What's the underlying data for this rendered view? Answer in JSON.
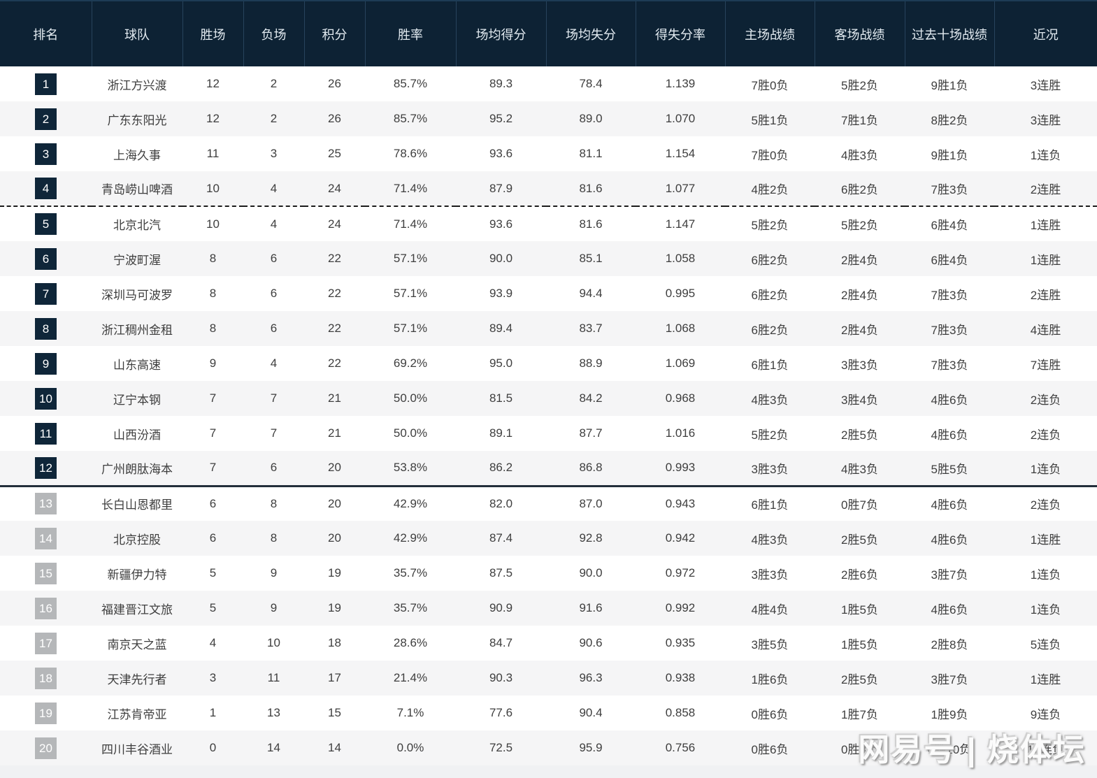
{
  "table": {
    "columns": [
      {
        "key": "rank",
        "label": "排名"
      },
      {
        "key": "team",
        "label": "球队"
      },
      {
        "key": "wins",
        "label": "胜场"
      },
      {
        "key": "losses",
        "label": "负场"
      },
      {
        "key": "points",
        "label": "积分"
      },
      {
        "key": "win_rate",
        "label": "胜率"
      },
      {
        "key": "avg_for",
        "label": "场均得分"
      },
      {
        "key": "avg_against",
        "label": "场均失分"
      },
      {
        "key": "ratio",
        "label": "得失分率"
      },
      {
        "key": "home",
        "label": "主场战绩"
      },
      {
        "key": "away",
        "label": "客场战绩"
      },
      {
        "key": "last10",
        "label": "过去十场战绩"
      },
      {
        "key": "recent",
        "label": "近况"
      }
    ],
    "rows": [
      {
        "rank": "1",
        "team": "浙江方兴渡",
        "wins": "12",
        "losses": "2",
        "points": "26",
        "win_rate": "85.7%",
        "avg_for": "89.3",
        "avg_against": "78.4",
        "ratio": "1.139",
        "home": "7胜0负",
        "away": "5胜2负",
        "last10": "9胜1负",
        "recent": "3连胜"
      },
      {
        "rank": "2",
        "team": "广东东阳光",
        "wins": "12",
        "losses": "2",
        "points": "26",
        "win_rate": "85.7%",
        "avg_for": "95.2",
        "avg_against": "89.0",
        "ratio": "1.070",
        "home": "5胜1负",
        "away": "7胜1负",
        "last10": "8胜2负",
        "recent": "3连胜"
      },
      {
        "rank": "3",
        "team": "上海久事",
        "wins": "11",
        "losses": "3",
        "points": "25",
        "win_rate": "78.6%",
        "avg_for": "93.6",
        "avg_against": "81.1",
        "ratio": "1.154",
        "home": "7胜0负",
        "away": "4胜3负",
        "last10": "9胜1负",
        "recent": "1连负"
      },
      {
        "rank": "4",
        "team": "青岛崂山啤酒",
        "wins": "10",
        "losses": "4",
        "points": "24",
        "win_rate": "71.4%",
        "avg_for": "87.9",
        "avg_against": "81.6",
        "ratio": "1.077",
        "home": "4胜2负",
        "away": "6胜2负",
        "last10": "7胜3负",
        "recent": "2连胜"
      },
      {
        "rank": "5",
        "team": "北京北汽",
        "wins": "10",
        "losses": "4",
        "points": "24",
        "win_rate": "71.4%",
        "avg_for": "93.6",
        "avg_against": "81.6",
        "ratio": "1.147",
        "home": "5胜2负",
        "away": "5胜2负",
        "last10": "6胜4负",
        "recent": "1连胜"
      },
      {
        "rank": "6",
        "team": "宁波町渥",
        "wins": "8",
        "losses": "6",
        "points": "22",
        "win_rate": "57.1%",
        "avg_for": "90.0",
        "avg_against": "85.1",
        "ratio": "1.058",
        "home": "6胜2负",
        "away": "2胜4负",
        "last10": "6胜4负",
        "recent": "1连胜"
      },
      {
        "rank": "7",
        "team": "深圳马可波罗",
        "wins": "8",
        "losses": "6",
        "points": "22",
        "win_rate": "57.1%",
        "avg_for": "93.9",
        "avg_against": "94.4",
        "ratio": "0.995",
        "home": "6胜2负",
        "away": "2胜4负",
        "last10": "7胜3负",
        "recent": "2连胜"
      },
      {
        "rank": "8",
        "team": "浙江稠州金租",
        "wins": "8",
        "losses": "6",
        "points": "22",
        "win_rate": "57.1%",
        "avg_for": "89.4",
        "avg_against": "83.7",
        "ratio": "1.068",
        "home": "6胜2负",
        "away": "2胜4负",
        "last10": "7胜3负",
        "recent": "4连胜"
      },
      {
        "rank": "9",
        "team": "山东高速",
        "wins": "9",
        "losses": "4",
        "points": "22",
        "win_rate": "69.2%",
        "avg_for": "95.0",
        "avg_against": "88.9",
        "ratio": "1.069",
        "home": "6胜1负",
        "away": "3胜3负",
        "last10": "7胜3负",
        "recent": "7连胜"
      },
      {
        "rank": "10",
        "team": "辽宁本钢",
        "wins": "7",
        "losses": "7",
        "points": "21",
        "win_rate": "50.0%",
        "avg_for": "81.5",
        "avg_against": "84.2",
        "ratio": "0.968",
        "home": "4胜3负",
        "away": "3胜4负",
        "last10": "4胜6负",
        "recent": "2连负"
      },
      {
        "rank": "11",
        "team": "山西汾酒",
        "wins": "7",
        "losses": "7",
        "points": "21",
        "win_rate": "50.0%",
        "avg_for": "89.1",
        "avg_against": "87.7",
        "ratio": "1.016",
        "home": "5胜2负",
        "away": "2胜5负",
        "last10": "4胜6负",
        "recent": "2连负"
      },
      {
        "rank": "12",
        "team": "广州朗肽海本",
        "wins": "7",
        "losses": "6",
        "points": "20",
        "win_rate": "53.8%",
        "avg_for": "86.2",
        "avg_against": "86.8",
        "ratio": "0.993",
        "home": "3胜3负",
        "away": "4胜3负",
        "last10": "5胜5负",
        "recent": "1连负"
      },
      {
        "rank": "13",
        "team": "长白山恩都里",
        "wins": "6",
        "losses": "8",
        "points": "20",
        "win_rate": "42.9%",
        "avg_for": "82.0",
        "avg_against": "87.0",
        "ratio": "0.943",
        "home": "6胜1负",
        "away": "0胜7负",
        "last10": "4胜6负",
        "recent": "2连负"
      },
      {
        "rank": "14",
        "team": "北京控股",
        "wins": "6",
        "losses": "8",
        "points": "20",
        "win_rate": "42.9%",
        "avg_for": "87.4",
        "avg_against": "92.8",
        "ratio": "0.942",
        "home": "4胜3负",
        "away": "2胜5负",
        "last10": "4胜6负",
        "recent": "1连胜"
      },
      {
        "rank": "15",
        "team": "新疆伊力特",
        "wins": "5",
        "losses": "9",
        "points": "19",
        "win_rate": "35.7%",
        "avg_for": "87.5",
        "avg_against": "90.0",
        "ratio": "0.972",
        "home": "3胜3负",
        "away": "2胜6负",
        "last10": "3胜7负",
        "recent": "1连负"
      },
      {
        "rank": "16",
        "team": "福建晋江文旅",
        "wins": "5",
        "losses": "9",
        "points": "19",
        "win_rate": "35.7%",
        "avg_for": "90.9",
        "avg_against": "91.6",
        "ratio": "0.992",
        "home": "4胜4负",
        "away": "1胜5负",
        "last10": "4胜6负",
        "recent": "1连负"
      },
      {
        "rank": "17",
        "team": "南京天之蓝",
        "wins": "4",
        "losses": "10",
        "points": "18",
        "win_rate": "28.6%",
        "avg_for": "84.7",
        "avg_against": "90.6",
        "ratio": "0.935",
        "home": "3胜5负",
        "away": "1胜5负",
        "last10": "2胜8负",
        "recent": "5连负"
      },
      {
        "rank": "18",
        "team": "天津先行者",
        "wins": "3",
        "losses": "11",
        "points": "17",
        "win_rate": "21.4%",
        "avg_for": "90.3",
        "avg_against": "96.3",
        "ratio": "0.938",
        "home": "1胜6负",
        "away": "2胜5负",
        "last10": "3胜7负",
        "recent": "1连胜"
      },
      {
        "rank": "19",
        "team": "江苏肯帝亚",
        "wins": "1",
        "losses": "13",
        "points": "15",
        "win_rate": "7.1%",
        "avg_for": "77.6",
        "avg_against": "90.4",
        "ratio": "0.858",
        "home": "0胜6负",
        "away": "1胜7负",
        "last10": "1胜9负",
        "recent": "9连负"
      },
      {
        "rank": "20",
        "team": "四川丰谷酒业",
        "wins": "0",
        "losses": "14",
        "points": "14",
        "win_rate": "0.0%",
        "avg_for": "72.5",
        "avg_against": "95.9",
        "ratio": "0.756",
        "home": "0胜6负",
        "away": "0胜8负",
        "last10": "0胜10负",
        "recent": "14连负"
      }
    ],
    "dashed_separator_after_rank": "4",
    "solid_separator_after_rank": "12",
    "dark_badge_max_rank": 12
  },
  "watermark": {
    "text": "网易号 | 烧体坛"
  },
  "colors": {
    "header_bg": "#0d2234",
    "header_text": "#e3ebf1",
    "rank_badge_dark": "#0f2639",
    "rank_badge_gray": "#b5b7b9",
    "row_odd": "#ffffff",
    "row_even": "#f5f5f6",
    "body_text": "#3e3e3e"
  }
}
